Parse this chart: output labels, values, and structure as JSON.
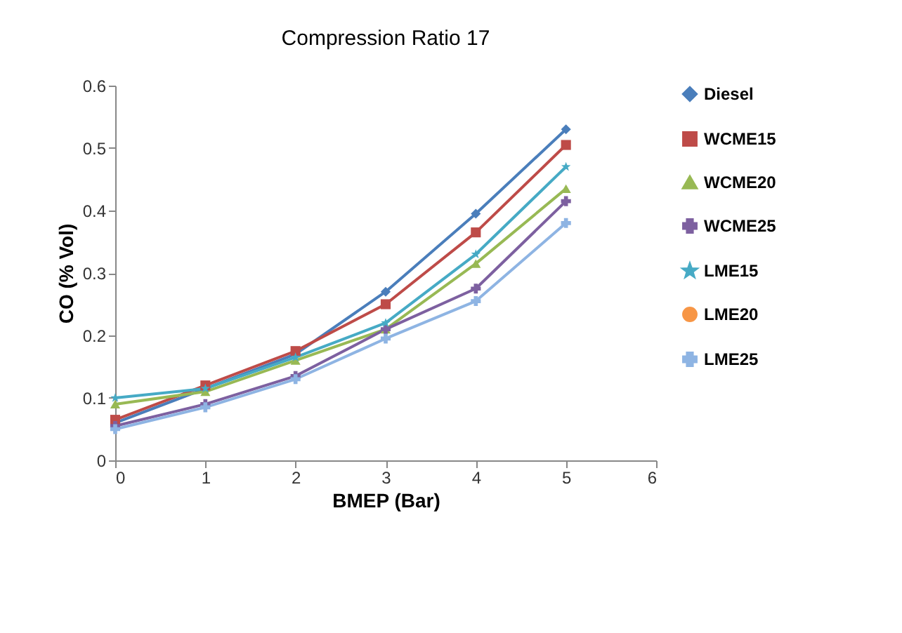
{
  "chart_data": {
    "type": "line",
    "title": "Compression Ratio 17",
    "xlabel": "BMEP (Bar)",
    "ylabel": "CO (% Vol)",
    "x": [
      0,
      1,
      2,
      3,
      4,
      5
    ],
    "series": [
      {
        "name": "Diesel",
        "color": "#4a7ebb",
        "marker": "diamond",
        "values": [
          0.06,
          0.115,
          0.17,
          0.27,
          0.395,
          0.53
        ]
      },
      {
        "name": "WCME15",
        "color": "#be4b48",
        "marker": "square",
        "values": [
          0.065,
          0.12,
          0.175,
          0.25,
          0.365,
          0.505
        ]
      },
      {
        "name": "WCME20",
        "color": "#98b954",
        "marker": "triangle",
        "values": [
          0.09,
          0.11,
          0.16,
          0.21,
          0.315,
          0.435
        ]
      },
      {
        "name": "WCME25",
        "color": "#7d60a0",
        "marker": "cross",
        "values": [
          0.055,
          0.09,
          0.135,
          0.21,
          0.275,
          0.415
        ]
      },
      {
        "name": "LME15",
        "color": "#46aac5",
        "marker": "star",
        "values": [
          0.1,
          0.115,
          0.165,
          0.22,
          0.33,
          0.47
        ]
      },
      {
        "name": "LME20",
        "color": "#f79646",
        "marker": "circle",
        "values": [
          null,
          null,
          null,
          null,
          null,
          null
        ]
      },
      {
        "name": "LME25",
        "color": "#8eb4e3",
        "marker": "cross",
        "values": [
          0.05,
          0.085,
          0.13,
          0.195,
          0.255,
          0.38
        ]
      }
    ],
    "xlim": [
      0,
      6
    ],
    "xticks": [
      0,
      1,
      2,
      3,
      4,
      5,
      6
    ],
    "ylim": [
      0,
      0.6
    ],
    "yticks": [
      0,
      0.1,
      0.2,
      0.3,
      0.4,
      0.5,
      0.6
    ],
    "grid": false,
    "legend": "right"
  }
}
